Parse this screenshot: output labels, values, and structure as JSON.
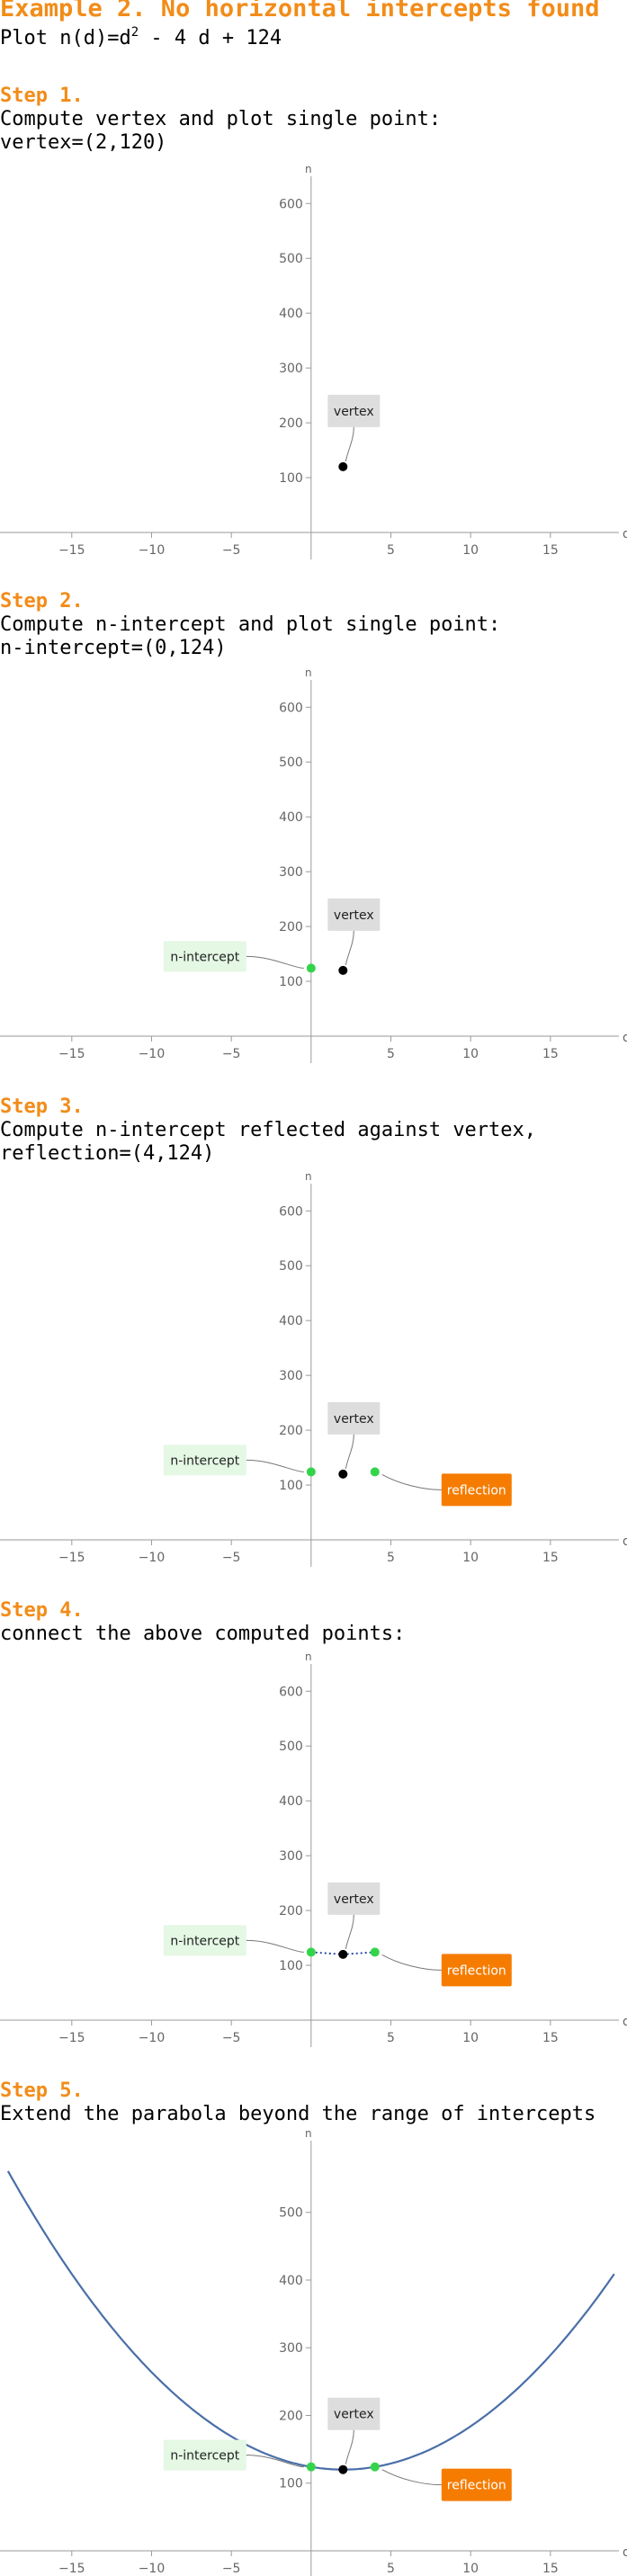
{
  "title": "Example 2. No horizontal intercepts found",
  "plot_line": {
    "prefix": "Plot n(d)=d",
    "exponent": "2",
    "suffix": " - 4 d + 124"
  },
  "steps": [
    {
      "title": "Step 1.",
      "lines": [
        "Compute vertex and plot single point:",
        "vertex=(2,120)"
      ]
    },
    {
      "title": "Step 2.",
      "lines": [
        "Compute n-intercept and plot single point:",
        "n-intercept=(0,124)"
      ]
    },
    {
      "title": "Step 3.",
      "lines": [
        "Compute n-intercept reflected against vertex,",
        "reflection=(4,124)"
      ]
    },
    {
      "title": "Step 4.",
      "lines": [
        "connect the above computed points:"
      ]
    },
    {
      "title": "Step 5.",
      "lines": [
        "Extend the parabola beyond the range of intercepts"
      ]
    }
  ],
  "colors": {
    "accent": "#F28C18",
    "point_green": "#34D44A",
    "point_black": "#000000",
    "curve_blue": "#4A6FA8",
    "label_gray": "#DDDDDD",
    "label_green": "#E4F8E4",
    "label_orange": "#F57C00"
  },
  "chart_data": [
    {
      "type": "scatter",
      "xlabel": "d",
      "ylabel": "n",
      "xlim": [
        -19.5,
        19.8
      ],
      "ylim": [
        -50,
        630
      ],
      "xticks": [
        -15,
        -10,
        -5,
        5,
        10,
        15
      ],
      "yticks": [
        100,
        200,
        300,
        400,
        500,
        600
      ],
      "grid": false,
      "points": [
        {
          "x": 2,
          "y": 120,
          "color": "black",
          "label": "vertex"
        }
      ],
      "connect": false,
      "curve": false
    },
    {
      "type": "scatter",
      "xlabel": "d",
      "ylabel": "n",
      "xlim": [
        -19.5,
        19.8
      ],
      "ylim": [
        -50,
        630
      ],
      "xticks": [
        -15,
        -10,
        -5,
        5,
        10,
        15
      ],
      "yticks": [
        100,
        200,
        300,
        400,
        500,
        600
      ],
      "grid": false,
      "points": [
        {
          "x": 2,
          "y": 120,
          "color": "black",
          "label": "vertex"
        },
        {
          "x": 0,
          "y": 124,
          "color": "green",
          "label": "n-intercept"
        }
      ],
      "connect": false,
      "curve": false
    },
    {
      "type": "scatter",
      "xlabel": "d",
      "ylabel": "n",
      "xlim": [
        -19.5,
        19.8
      ],
      "ylim": [
        -50,
        630
      ],
      "xticks": [
        -15,
        -10,
        -5,
        5,
        10,
        15
      ],
      "yticks": [
        100,
        200,
        300,
        400,
        500,
        600
      ],
      "grid": false,
      "points": [
        {
          "x": 2,
          "y": 120,
          "color": "black",
          "label": "vertex"
        },
        {
          "x": 0,
          "y": 124,
          "color": "green",
          "label": "n-intercept"
        },
        {
          "x": 4,
          "y": 124,
          "color": "green",
          "label": "reflection"
        }
      ],
      "connect": false,
      "curve": false
    },
    {
      "type": "scatter",
      "xlabel": "d",
      "ylabel": "n",
      "xlim": [
        -19.5,
        19.8
      ],
      "ylim": [
        -50,
        630
      ],
      "xticks": [
        -15,
        -10,
        -5,
        5,
        10,
        15
      ],
      "yticks": [
        100,
        200,
        300,
        400,
        500,
        600
      ],
      "grid": false,
      "points": [
        {
          "x": 2,
          "y": 120,
          "color": "black",
          "label": "vertex"
        },
        {
          "x": 0,
          "y": 124,
          "color": "green",
          "label": "n-intercept"
        },
        {
          "x": 4,
          "y": 124,
          "color": "green",
          "label": "reflection"
        }
      ],
      "connect": true,
      "curve": false
    },
    {
      "type": "line",
      "xlabel": "d",
      "ylabel": "n",
      "xlim": [
        -19.5,
        19.8
      ],
      "ylim": [
        -50,
        590
      ],
      "xticks": [
        -15,
        -10,
        -5,
        5,
        10,
        15
      ],
      "yticks": [
        100,
        200,
        300,
        400,
        500
      ],
      "grid": false,
      "points": [
        {
          "x": 2,
          "y": 120,
          "color": "black",
          "label": "vertex"
        },
        {
          "x": 0,
          "y": 124,
          "color": "green",
          "label": "n-intercept"
        },
        {
          "x": 4,
          "y": 124,
          "color": "green",
          "label": "reflection"
        }
      ],
      "connect": false,
      "curve": {
        "a": 1,
        "b": -4,
        "c": 124,
        "xmin": -19,
        "xmax": 19
      },
      "series": [
        {
          "name": "n(d)=d^2-4d+124",
          "x": [
            -19,
            -15,
            -10,
            -5,
            0,
            2,
            4,
            10,
            15,
            19
          ],
          "y": [
            561,
            409,
            264,
            169,
            124,
            120,
            124,
            184,
            289,
            409
          ]
        }
      ]
    }
  ]
}
